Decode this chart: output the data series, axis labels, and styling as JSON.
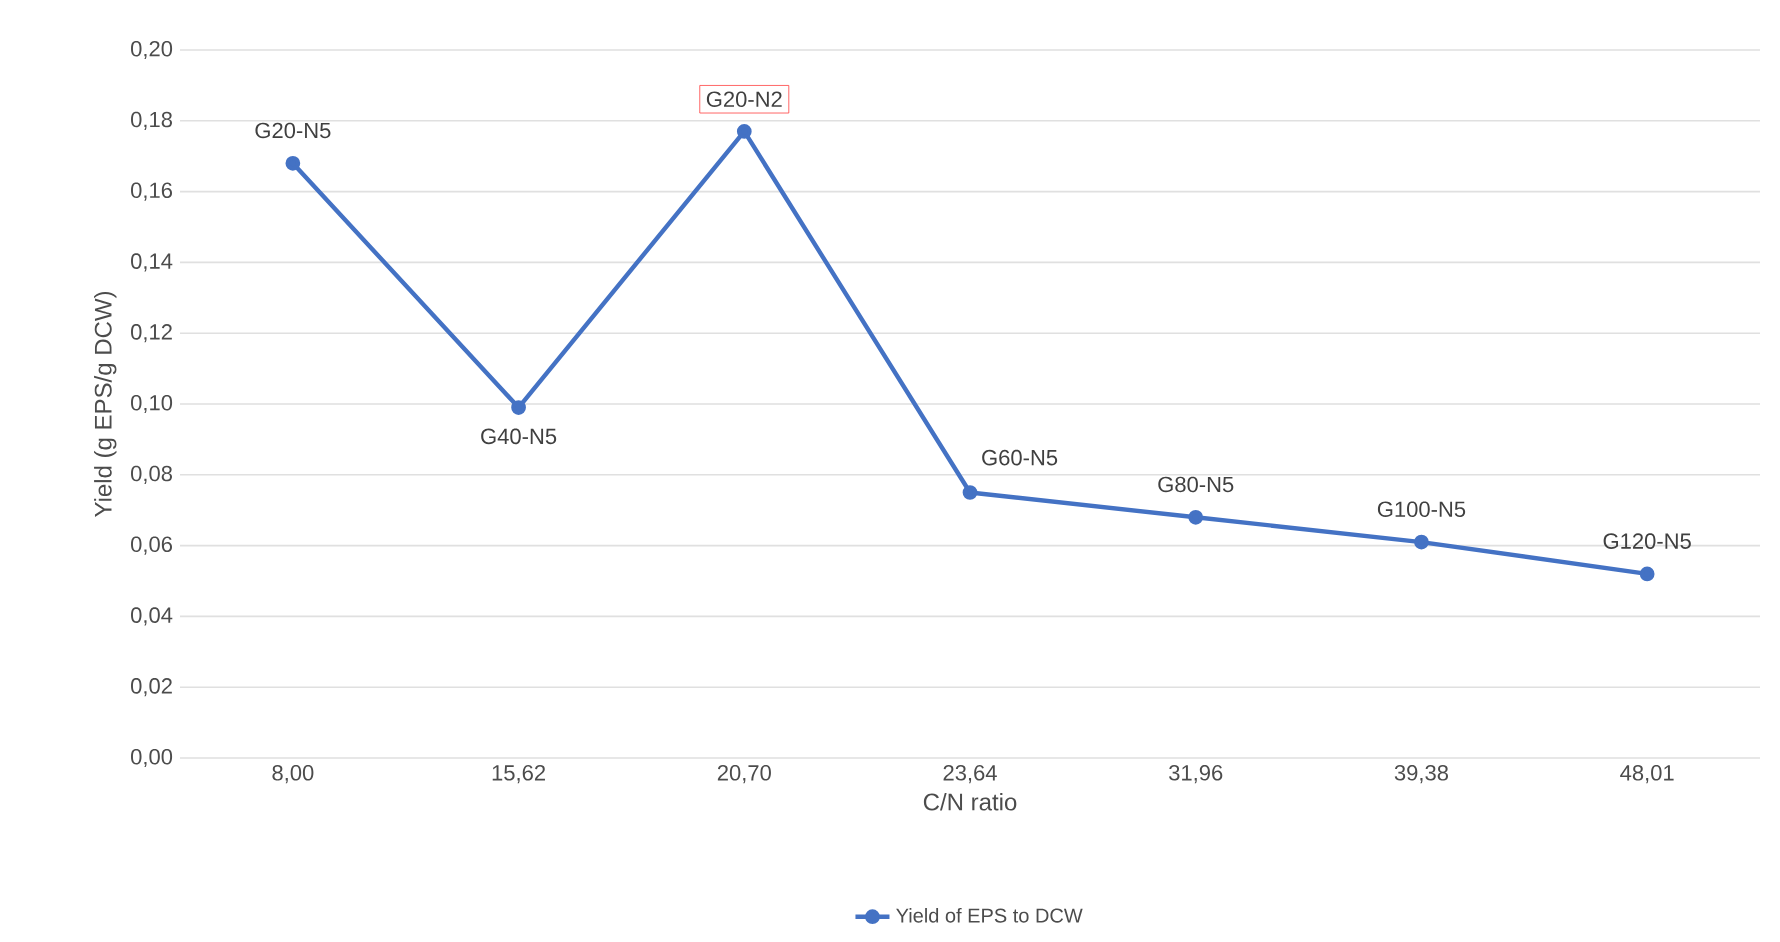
{
  "chart_data": {
    "type": "line",
    "xlabel": "C/N ratio",
    "ylabel": "Yield (g EPS/g DCW)",
    "categories": [
      "8,00",
      "15,62",
      "20,70",
      "23,64",
      "31,96",
      "39,38",
      "48,01"
    ],
    "series": [
      {
        "name": "Yield of EPS to DCW",
        "color": "#4472c4",
        "values": [
          0.168,
          0.099,
          0.177,
          0.075,
          0.068,
          0.061,
          0.052
        ]
      }
    ],
    "ylim": [
      0,
      0.2
    ],
    "yticks": [
      {
        "value": 0,
        "label": "0,00"
      },
      {
        "value": 0.02,
        "label": "0,02"
      },
      {
        "value": 0.04,
        "label": "0,04"
      },
      {
        "value": 0.06,
        "label": "0,06"
      },
      {
        "value": 0.08,
        "label": "0,08"
      },
      {
        "value": 0.1,
        "label": "0,10"
      },
      {
        "value": 0.12,
        "label": "0,12"
      },
      {
        "value": 0.14,
        "label": "0,14"
      },
      {
        "value": 0.16,
        "label": "0,16"
      },
      {
        "value": 0.18,
        "label": "0,18"
      },
      {
        "value": 0.2,
        "label": "0,20"
      }
    ],
    "grid": "y",
    "legend": "bottom",
    "marker": "circle",
    "line_style": "solid",
    "annotations": [
      {
        "text": "G20-N5",
        "x": "8,00",
        "y": 0.168
      },
      {
        "text": "G40-N5",
        "x": "15,62",
        "y": 0.099
      },
      {
        "text": "G20-N2",
        "x": "20,70",
        "y": 0.177
      },
      {
        "text": "G60-N5",
        "x": "23,64",
        "y": 0.075
      },
      {
        "text": "G80-N5",
        "x": "31,96",
        "y": 0.068
      },
      {
        "text": "G100-N5",
        "x": "39,38",
        "y": 0.061
      },
      {
        "text": "G120-N5",
        "x": "48,01",
        "y": 0.052
      }
    ]
  }
}
